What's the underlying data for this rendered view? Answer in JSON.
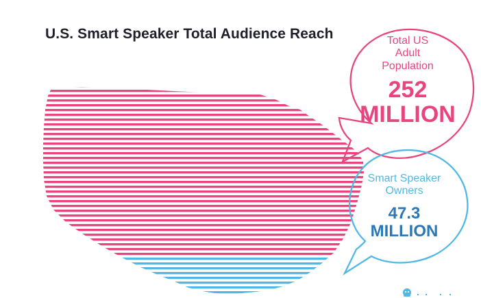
{
  "page": {
    "title": "U.S. Smart Speaker Total Audience Reach"
  },
  "callouts": {
    "total": {
      "label": "Total US Adult Population",
      "value": "252",
      "unit": "MILLION"
    },
    "owners": {
      "label": "Smart Speaker Owners",
      "value": "47.3",
      "unit": "MILLION"
    }
  },
  "colors": {
    "total": "#e8457f",
    "owners": "#4fb8e6",
    "owners_value": "#2a78b9",
    "title": "#1f1f2b"
  },
  "chart_data": {
    "type": "bar",
    "title": "U.S. Smart Speaker Total Audience Reach",
    "categories": [
      "Total US Adult Population",
      "Smart Speaker Owners"
    ],
    "values": [
      252,
      47.3
    ],
    "unit": "MILLION",
    "encoding": "striped U.S. map split by share"
  }
}
